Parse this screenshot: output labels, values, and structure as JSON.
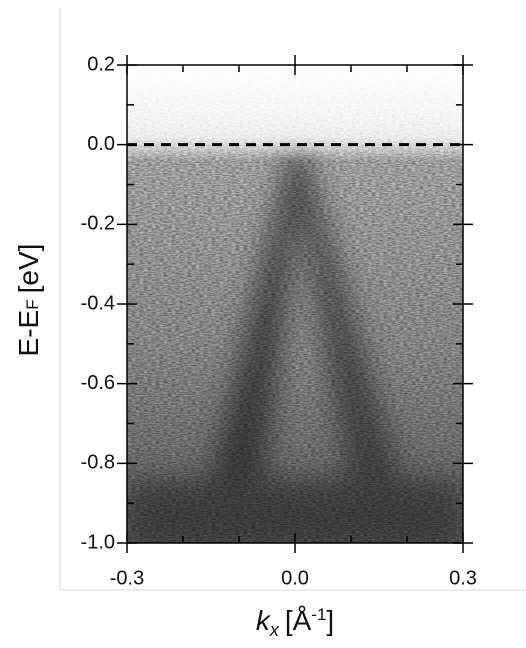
{
  "chart_data": {
    "type": "image",
    "xlabel": {
      "symbol": "k",
      "sub": "x",
      "unit": "[Å",
      "sup": "-1",
      "close": "]"
    },
    "ylabel": {
      "main": "E-E",
      "sub": "F",
      "unit": "[eV]"
    },
    "xlim": [
      -0.3,
      0.3
    ],
    "ylim": [
      -1.0,
      0.2
    ],
    "xticks": [
      -0.3,
      {
        "value": 0,
        "label": "0.0"
      },
      0.3
    ],
    "yticks": [
      0.2,
      {
        "value": 0,
        "label": "0.0"
      },
      -0.2,
      -0.4,
      -0.6,
      -0.8,
      {
        "value": -1,
        "label": "-1.0"
      }
    ],
    "xminorticks": [
      -0.2,
      -0.1,
      0.1,
      0.2
    ],
    "yminorticks": [
      0.1,
      -0.1,
      -0.3,
      -0.5,
      -0.7,
      -0.9
    ],
    "hline": 0
  }
}
